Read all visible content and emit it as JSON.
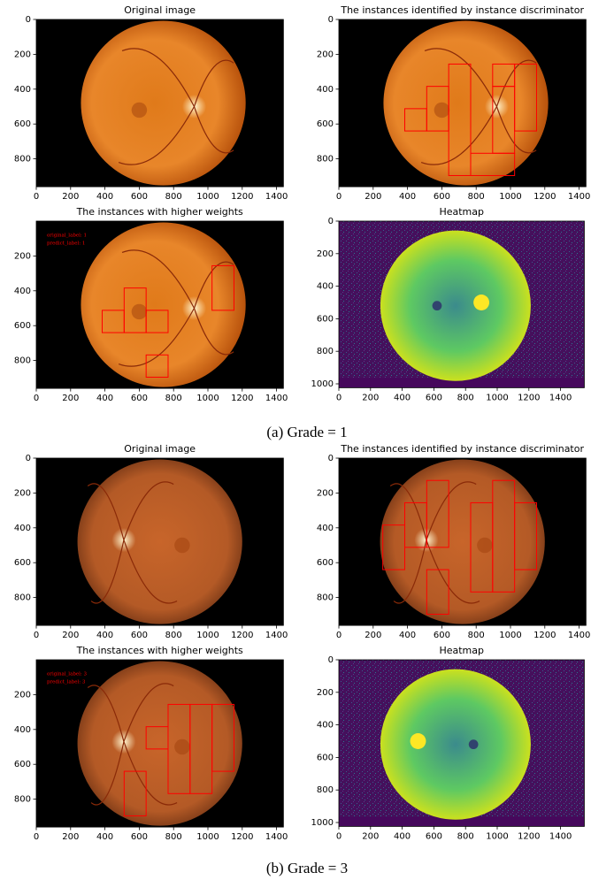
{
  "figures": [
    {
      "caption": "(a) Grade = 1",
      "panels": [
        {
          "title": "Original image",
          "xticks": [
            0,
            200,
            400,
            600,
            800,
            1000,
            1200,
            1400
          ],
          "yticks": [
            0,
            200,
            400,
            600,
            800
          ]
        },
        {
          "title": "The instances identified by instance discriminator",
          "xticks": [
            0,
            200,
            400,
            600,
            800,
            1000,
            1200,
            1400
          ],
          "yticks": [
            0,
            200,
            400,
            600,
            800
          ]
        },
        {
          "title": "The instances with higher weights",
          "xticks": [
            0,
            200,
            400,
            600,
            800,
            1000,
            1200,
            1400
          ],
          "yticks": [
            200,
            400,
            600,
            800
          ],
          "annotation": [
            "original_label: 1",
            "predict_label: 1"
          ]
        },
        {
          "title": "Heatmap",
          "xticks": [
            0,
            200,
            400,
            600,
            800,
            1000,
            1200,
            1400
          ],
          "yticks": [
            0,
            200,
            400,
            600,
            800,
            1000
          ]
        }
      ]
    },
    {
      "caption": "(b) Grade = 3",
      "panels": [
        {
          "title": "Original image",
          "xticks": [
            0,
            200,
            400,
            600,
            800,
            1000,
            1200,
            1400
          ],
          "yticks": [
            0,
            200,
            400,
            600,
            800
          ]
        },
        {
          "title": "The instances identified by instance discriminator",
          "xticks": [
            0,
            200,
            400,
            600,
            800,
            1000,
            1200,
            1400
          ],
          "yticks": [
            0,
            200,
            400,
            600,
            800
          ]
        },
        {
          "title": "The instances with higher weights",
          "xticks": [
            0,
            200,
            400,
            600,
            800,
            1000,
            1200,
            1400
          ],
          "yticks": [
            200,
            400,
            600,
            800
          ],
          "annotation": [
            "original_label: 3",
            "predict_label: 3"
          ]
        },
        {
          "title": "Heatmap",
          "xticks": [
            0,
            200,
            400,
            600,
            800,
            1000,
            1200,
            1400
          ],
          "yticks": [
            0,
            200,
            400,
            600,
            800,
            1000
          ]
        }
      ]
    }
  ]
}
